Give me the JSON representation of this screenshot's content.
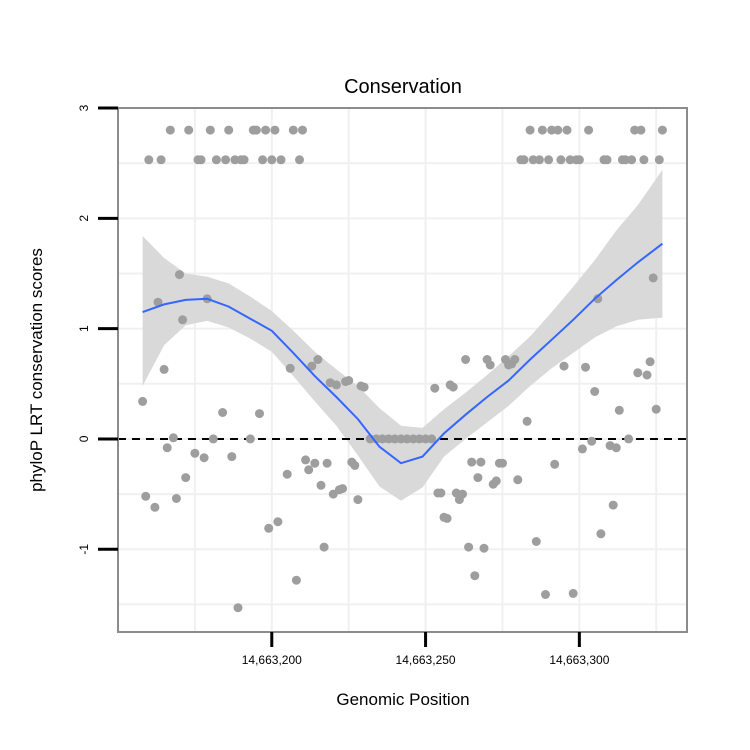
{
  "chart_data": {
    "type": "scatter",
    "title": "Conservation",
    "xlabel": "Genomic Position",
    "ylabel": "phyloP LRT conservation scores",
    "xlim": [
      14663150,
      14663335
    ],
    "ylim": [
      -1.75,
      3
    ],
    "x_ticks": [
      14663200,
      14663250,
      14663300
    ],
    "x_tick_labels": [
      "14,663,200",
      "14,663,250",
      "14,663,300"
    ],
    "y_ticks": [
      -1,
      0,
      1,
      2,
      3
    ],
    "y_tick_labels": [
      "-1",
      "0",
      "1",
      "2",
      "3"
    ],
    "grid": true,
    "reference_line": {
      "y": 0,
      "style": "dashed"
    },
    "colors": {
      "points": "#9e9e9e",
      "smooth_line": "#3366ff",
      "confidence_band": "#d9d9d9",
      "panel_border": "#8c8c8c",
      "grid": "#f0f0f0"
    },
    "points": [
      {
        "x": 14663158,
        "y": 0.34
      },
      {
        "x": 14663159,
        "y": -0.52
      },
      {
        "x": 14663160,
        "y": 2.53
      },
      {
        "x": 14663162,
        "y": -0.62
      },
      {
        "x": 14663163,
        "y": 1.24
      },
      {
        "x": 14663164,
        "y": 2.53
      },
      {
        "x": 14663165,
        "y": 0.63
      },
      {
        "x": 14663166,
        "y": -0.08
      },
      {
        "x": 14663167,
        "y": 2.8
      },
      {
        "x": 14663168,
        "y": 0.01
      },
      {
        "x": 14663169,
        "y": -0.54
      },
      {
        "x": 14663170,
        "y": 1.49
      },
      {
        "x": 14663171,
        "y": 1.08
      },
      {
        "x": 14663172,
        "y": -0.35
      },
      {
        "x": 14663173,
        "y": 2.8
      },
      {
        "x": 14663175,
        "y": -0.13
      },
      {
        "x": 14663176,
        "y": 2.53
      },
      {
        "x": 14663177,
        "y": 2.53
      },
      {
        "x": 14663178,
        "y": -0.17
      },
      {
        "x": 14663179,
        "y": 1.27
      },
      {
        "x": 14663180,
        "y": 2.8
      },
      {
        "x": 14663181,
        "y": 0.0
      },
      {
        "x": 14663182,
        "y": 2.53
      },
      {
        "x": 14663184,
        "y": 0.24
      },
      {
        "x": 14663185,
        "y": 2.53
      },
      {
        "x": 14663186,
        "y": 2.8
      },
      {
        "x": 14663187,
        "y": -0.16
      },
      {
        "x": 14663188,
        "y": 2.53
      },
      {
        "x": 14663189,
        "y": -1.53
      },
      {
        "x": 14663190,
        "y": 2.53
      },
      {
        "x": 14663191,
        "y": 2.53
      },
      {
        "x": 14663193,
        "y": 0.0
      },
      {
        "x": 14663194,
        "y": 2.8
      },
      {
        "x": 14663195,
        "y": 2.8
      },
      {
        "x": 14663196,
        "y": 0.23
      },
      {
        "x": 14663197,
        "y": 2.53
      },
      {
        "x": 14663198,
        "y": 2.8
      },
      {
        "x": 14663199,
        "y": -0.81
      },
      {
        "x": 14663200,
        "y": 2.53
      },
      {
        "x": 14663201,
        "y": 2.8
      },
      {
        "x": 14663202,
        "y": -0.75
      },
      {
        "x": 14663203,
        "y": 2.53
      },
      {
        "x": 14663205,
        "y": -0.32
      },
      {
        "x": 14663206,
        "y": 0.64
      },
      {
        "x": 14663207,
        "y": 2.8
      },
      {
        "x": 14663208,
        "y": -1.28
      },
      {
        "x": 14663209,
        "y": 2.53
      },
      {
        "x": 14663210,
        "y": 2.8
      },
      {
        "x": 14663211,
        "y": -0.19
      },
      {
        "x": 14663212,
        "y": -0.28
      },
      {
        "x": 14663213,
        "y": 0.66
      },
      {
        "x": 14663214,
        "y": -0.22
      },
      {
        "x": 14663215,
        "y": 0.72
      },
      {
        "x": 14663216,
        "y": -0.42
      },
      {
        "x": 14663217,
        "y": -0.98
      },
      {
        "x": 14663218,
        "y": -0.22
      },
      {
        "x": 14663219,
        "y": 0.51
      },
      {
        "x": 14663220,
        "y": -0.5
      },
      {
        "x": 14663221,
        "y": 0.49
      },
      {
        "x": 14663222,
        "y": -0.46
      },
      {
        "x": 14663223,
        "y": -0.45
      },
      {
        "x": 14663224,
        "y": 0.52
      },
      {
        "x": 14663225,
        "y": 0.53
      },
      {
        "x": 14663226,
        "y": -0.21
      },
      {
        "x": 14663227,
        "y": -0.24
      },
      {
        "x": 14663228,
        "y": -0.55
      },
      {
        "x": 14663229,
        "y": 0.48
      },
      {
        "x": 14663230,
        "y": 0.47
      },
      {
        "x": 14663232,
        "y": 0.0
      },
      {
        "x": 14663234,
        "y": 0.0
      },
      {
        "x": 14663236,
        "y": 0.0
      },
      {
        "x": 14663238,
        "y": 0.0
      },
      {
        "x": 14663240,
        "y": 0.0
      },
      {
        "x": 14663242,
        "y": 0.0
      },
      {
        "x": 14663244,
        "y": 0.0
      },
      {
        "x": 14663246,
        "y": 0.0
      },
      {
        "x": 14663248,
        "y": 0.0
      },
      {
        "x": 14663250,
        "y": 0.0
      },
      {
        "x": 14663252,
        "y": 0.0
      },
      {
        "x": 14663253,
        "y": 0.46
      },
      {
        "x": 14663254,
        "y": -0.49
      },
      {
        "x": 14663255,
        "y": -0.49
      },
      {
        "x": 14663256,
        "y": -0.71
      },
      {
        "x": 14663257,
        "y": -0.72
      },
      {
        "x": 14663258,
        "y": 0.49
      },
      {
        "x": 14663259,
        "y": 0.47
      },
      {
        "x": 14663260,
        "y": -0.49
      },
      {
        "x": 14663261,
        "y": -0.55
      },
      {
        "x": 14663262,
        "y": -0.5
      },
      {
        "x": 14663263,
        "y": 0.72
      },
      {
        "x": 14663264,
        "y": -0.98
      },
      {
        "x": 14663265,
        "y": -0.21
      },
      {
        "x": 14663266,
        "y": -1.24
      },
      {
        "x": 14663267,
        "y": -0.35
      },
      {
        "x": 14663268,
        "y": -0.21
      },
      {
        "x": 14663269,
        "y": -0.99
      },
      {
        "x": 14663270,
        "y": 0.72
      },
      {
        "x": 14663271,
        "y": 0.67
      },
      {
        "x": 14663272,
        "y": -0.41
      },
      {
        "x": 14663273,
        "y": -0.38
      },
      {
        "x": 14663274,
        "y": -0.22
      },
      {
        "x": 14663275,
        "y": -0.22
      },
      {
        "x": 14663276,
        "y": 0.72
      },
      {
        "x": 14663277,
        "y": 0.67
      },
      {
        "x": 14663278,
        "y": 0.68
      },
      {
        "x": 14663279,
        "y": 0.72
      },
      {
        "x": 14663280,
        "y": -0.37
      },
      {
        "x": 14663281,
        "y": 2.53
      },
      {
        "x": 14663282,
        "y": 2.53
      },
      {
        "x": 14663283,
        "y": 0.16
      },
      {
        "x": 14663284,
        "y": 2.8
      },
      {
        "x": 14663285,
        "y": 2.53
      },
      {
        "x": 14663286,
        "y": -0.93
      },
      {
        "x": 14663287,
        "y": 2.53
      },
      {
        "x": 14663288,
        "y": 2.8
      },
      {
        "x": 14663289,
        "y": -1.41
      },
      {
        "x": 14663290,
        "y": 2.53
      },
      {
        "x": 14663291,
        "y": 2.8
      },
      {
        "x": 14663292,
        "y": -0.23
      },
      {
        "x": 14663293,
        "y": 2.8
      },
      {
        "x": 14663294,
        "y": 2.53
      },
      {
        "x": 14663295,
        "y": 0.66
      },
      {
        "x": 14663296,
        "y": 2.8
      },
      {
        "x": 14663297,
        "y": 2.53
      },
      {
        "x": 14663298,
        "y": -1.4
      },
      {
        "x": 14663299,
        "y": 2.53
      },
      {
        "x": 14663300,
        "y": 2.53
      },
      {
        "x": 14663301,
        "y": -0.09
      },
      {
        "x": 14663302,
        "y": 0.65
      },
      {
        "x": 14663303,
        "y": 2.8
      },
      {
        "x": 14663304,
        "y": -0.02
      },
      {
        "x": 14663305,
        "y": 0.43
      },
      {
        "x": 14663306,
        "y": 1.27
      },
      {
        "x": 14663307,
        "y": -0.86
      },
      {
        "x": 14663308,
        "y": 2.53
      },
      {
        "x": 14663309,
        "y": 2.53
      },
      {
        "x": 14663310,
        "y": -0.06
      },
      {
        "x": 14663311,
        "y": -0.6
      },
      {
        "x": 14663312,
        "y": -0.08
      },
      {
        "x": 14663313,
        "y": 0.26
      },
      {
        "x": 14663314,
        "y": 2.53
      },
      {
        "x": 14663315,
        "y": 2.53
      },
      {
        "x": 14663316,
        "y": 0.0
      },
      {
        "x": 14663317,
        "y": 2.53
      },
      {
        "x": 14663318,
        "y": 2.8
      },
      {
        "x": 14663319,
        "y": 0.6
      },
      {
        "x": 14663320,
        "y": 2.8
      },
      {
        "x": 14663321,
        "y": 2.53
      },
      {
        "x": 14663322,
        "y": 0.58
      },
      {
        "x": 14663323,
        "y": 0.7
      },
      {
        "x": 14663324,
        "y": 1.46
      },
      {
        "x": 14663325,
        "y": 0.27
      },
      {
        "x": 14663326,
        "y": 2.53
      },
      {
        "x": 14663327,
        "y": 2.8
      }
    ],
    "smooth": {
      "x": [
        14663158,
        14663165,
        14663172,
        14663179,
        14663186,
        14663193,
        14663200,
        14663207,
        14663214,
        14663221,
        14663228,
        14663235,
        14663242,
        14663249,
        14663256,
        14663263,
        14663270,
        14663277,
        14663284,
        14663291,
        14663298,
        14663305,
        14663312,
        14663319,
        14663327
      ],
      "y": [
        1.15,
        1.22,
        1.26,
        1.27,
        1.2,
        1.09,
        0.98,
        0.78,
        0.57,
        0.38,
        0.18,
        -0.07,
        -0.22,
        -0.16,
        0.05,
        0.22,
        0.38,
        0.53,
        0.72,
        0.9,
        1.08,
        1.27,
        1.44,
        1.6,
        1.77
      ],
      "lo": [
        0.48,
        0.85,
        1.03,
        1.07,
        1.01,
        0.91,
        0.79,
        0.57,
        0.34,
        0.12,
        -0.15,
        -0.43,
        -0.56,
        -0.44,
        -0.16,
        0.0,
        0.15,
        0.3,
        0.48,
        0.64,
        0.78,
        0.92,
        1.02,
        1.08,
        1.1
      ],
      "hi": [
        1.84,
        1.64,
        1.5,
        1.47,
        1.41,
        1.29,
        1.16,
        0.98,
        0.79,
        0.63,
        0.48,
        0.28,
        0.12,
        0.1,
        0.27,
        0.42,
        0.58,
        0.75,
        0.93,
        1.15,
        1.38,
        1.62,
        1.89,
        2.12,
        2.44
      ]
    }
  }
}
